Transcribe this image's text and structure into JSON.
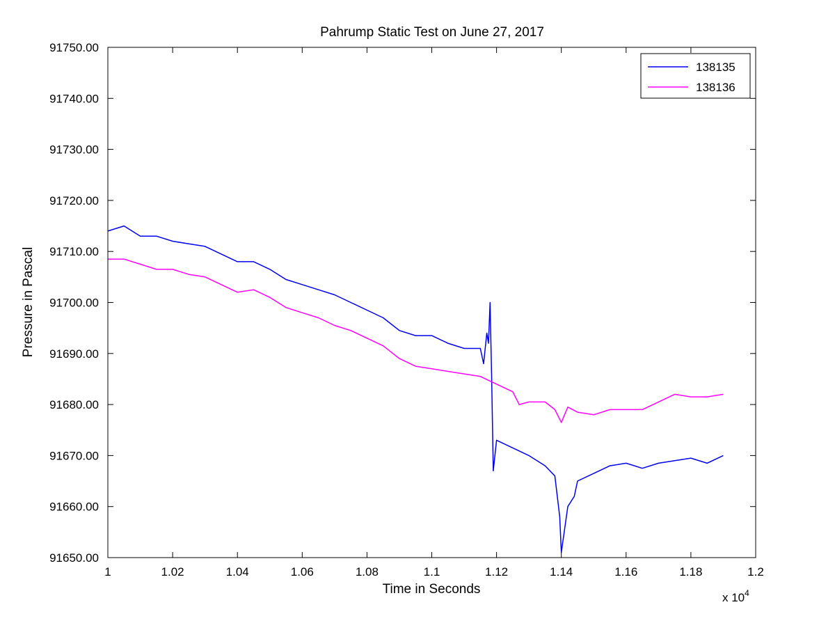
{
  "chart_data": {
    "type": "line",
    "title": "Pahrump Static Test on June 27, 2017",
    "xlabel": "Time in Seconds",
    "ylabel": "Pressure in Pascal",
    "x_scale_label": "x 10",
    "x_scale_exponent": "4",
    "xlim": [
      10000,
      12000
    ],
    "ylim": [
      91650,
      91750
    ],
    "x_tick_values": [
      10000,
      10200,
      10400,
      10600,
      10800,
      11000,
      11200,
      11400,
      11600,
      11800,
      12000
    ],
    "x_tick_labels": [
      "1",
      "1.02",
      "1.04",
      "1.06",
      "1.08",
      "1.1",
      "1.12",
      "1.14",
      "1.16",
      "1.18",
      "1.2"
    ],
    "y_tick_values": [
      91650,
      91660,
      91670,
      91680,
      91690,
      91700,
      91710,
      91720,
      91730,
      91740,
      91750
    ],
    "y_tick_labels": [
      "91650.00",
      "91660.00",
      "91670.00",
      "91680.00",
      "91690.00",
      "91700.00",
      "91710.00",
      "91720.00",
      "91730.00",
      "91740.00",
      "91750.00"
    ],
    "grid": false,
    "legend_position": "top-right",
    "series": [
      {
        "name": "138135",
        "color": "#0000ee",
        "x": [
          10000,
          10050,
          10100,
          10150,
          10200,
          10250,
          10300,
          10350,
          10400,
          10450,
          10500,
          10550,
          10600,
          10650,
          10700,
          10750,
          10800,
          10850,
          10900,
          10950,
          11000,
          11050,
          11100,
          11150,
          11160,
          11170,
          11175,
          11180,
          11185,
          11190,
          11200,
          11250,
          11300,
          11350,
          11380,
          11395,
          11400,
          11420,
          11440,
          11450,
          11500,
          11550,
          11600,
          11650,
          11700,
          11750,
          11800,
          11850,
          11900
        ],
        "y": [
          91714,
          91715,
          91713,
          91713,
          91712,
          91711.5,
          91711,
          91709.5,
          91708,
          91708,
          91706.5,
          91704.5,
          91703.5,
          91702.5,
          91701.5,
          91700,
          91698.5,
          91697,
          91694.5,
          91693.5,
          91693.5,
          91692,
          91691,
          91691,
          91688,
          91694,
          91692,
          91700,
          91685,
          91667,
          91673,
          91671.5,
          91670,
          91668,
          91666,
          91658,
          91651,
          91660,
          91662,
          91665,
          91666.5,
          91668,
          91668.5,
          91667.5,
          91668.5,
          91669,
          91669.5,
          91668.5,
          91670
        ]
      },
      {
        "name": "138136",
        "color": "#ff00ff",
        "x": [
          10000,
          10050,
          10100,
          10150,
          10200,
          10250,
          10300,
          10350,
          10400,
          10450,
          10500,
          10550,
          10600,
          10650,
          10700,
          10750,
          10800,
          10850,
          10900,
          10950,
          11000,
          11050,
          11100,
          11150,
          11200,
          11250,
          11270,
          11300,
          11350,
          11380,
          11400,
          11420,
          11450,
          11500,
          11550,
          11600,
          11650,
          11700,
          11750,
          11800,
          11850,
          11900
        ],
        "y": [
          91708.5,
          91708.5,
          91707.5,
          91706.5,
          91706.5,
          91705.5,
          91705,
          91703.5,
          91702,
          91702.5,
          91701,
          91699,
          91698,
          91697,
          91695.5,
          91694.5,
          91693,
          91691.5,
          91689,
          91687.5,
          91687,
          91686.5,
          91686,
          91685.5,
          91684,
          91682.5,
          91680,
          91680.5,
          91680.5,
          91679,
          91676.5,
          91679.5,
          91678.5,
          91678,
          91679,
          91679,
          91679,
          91680.5,
          91682,
          91681.5,
          91681.5,
          91682
        ]
      }
    ]
  }
}
